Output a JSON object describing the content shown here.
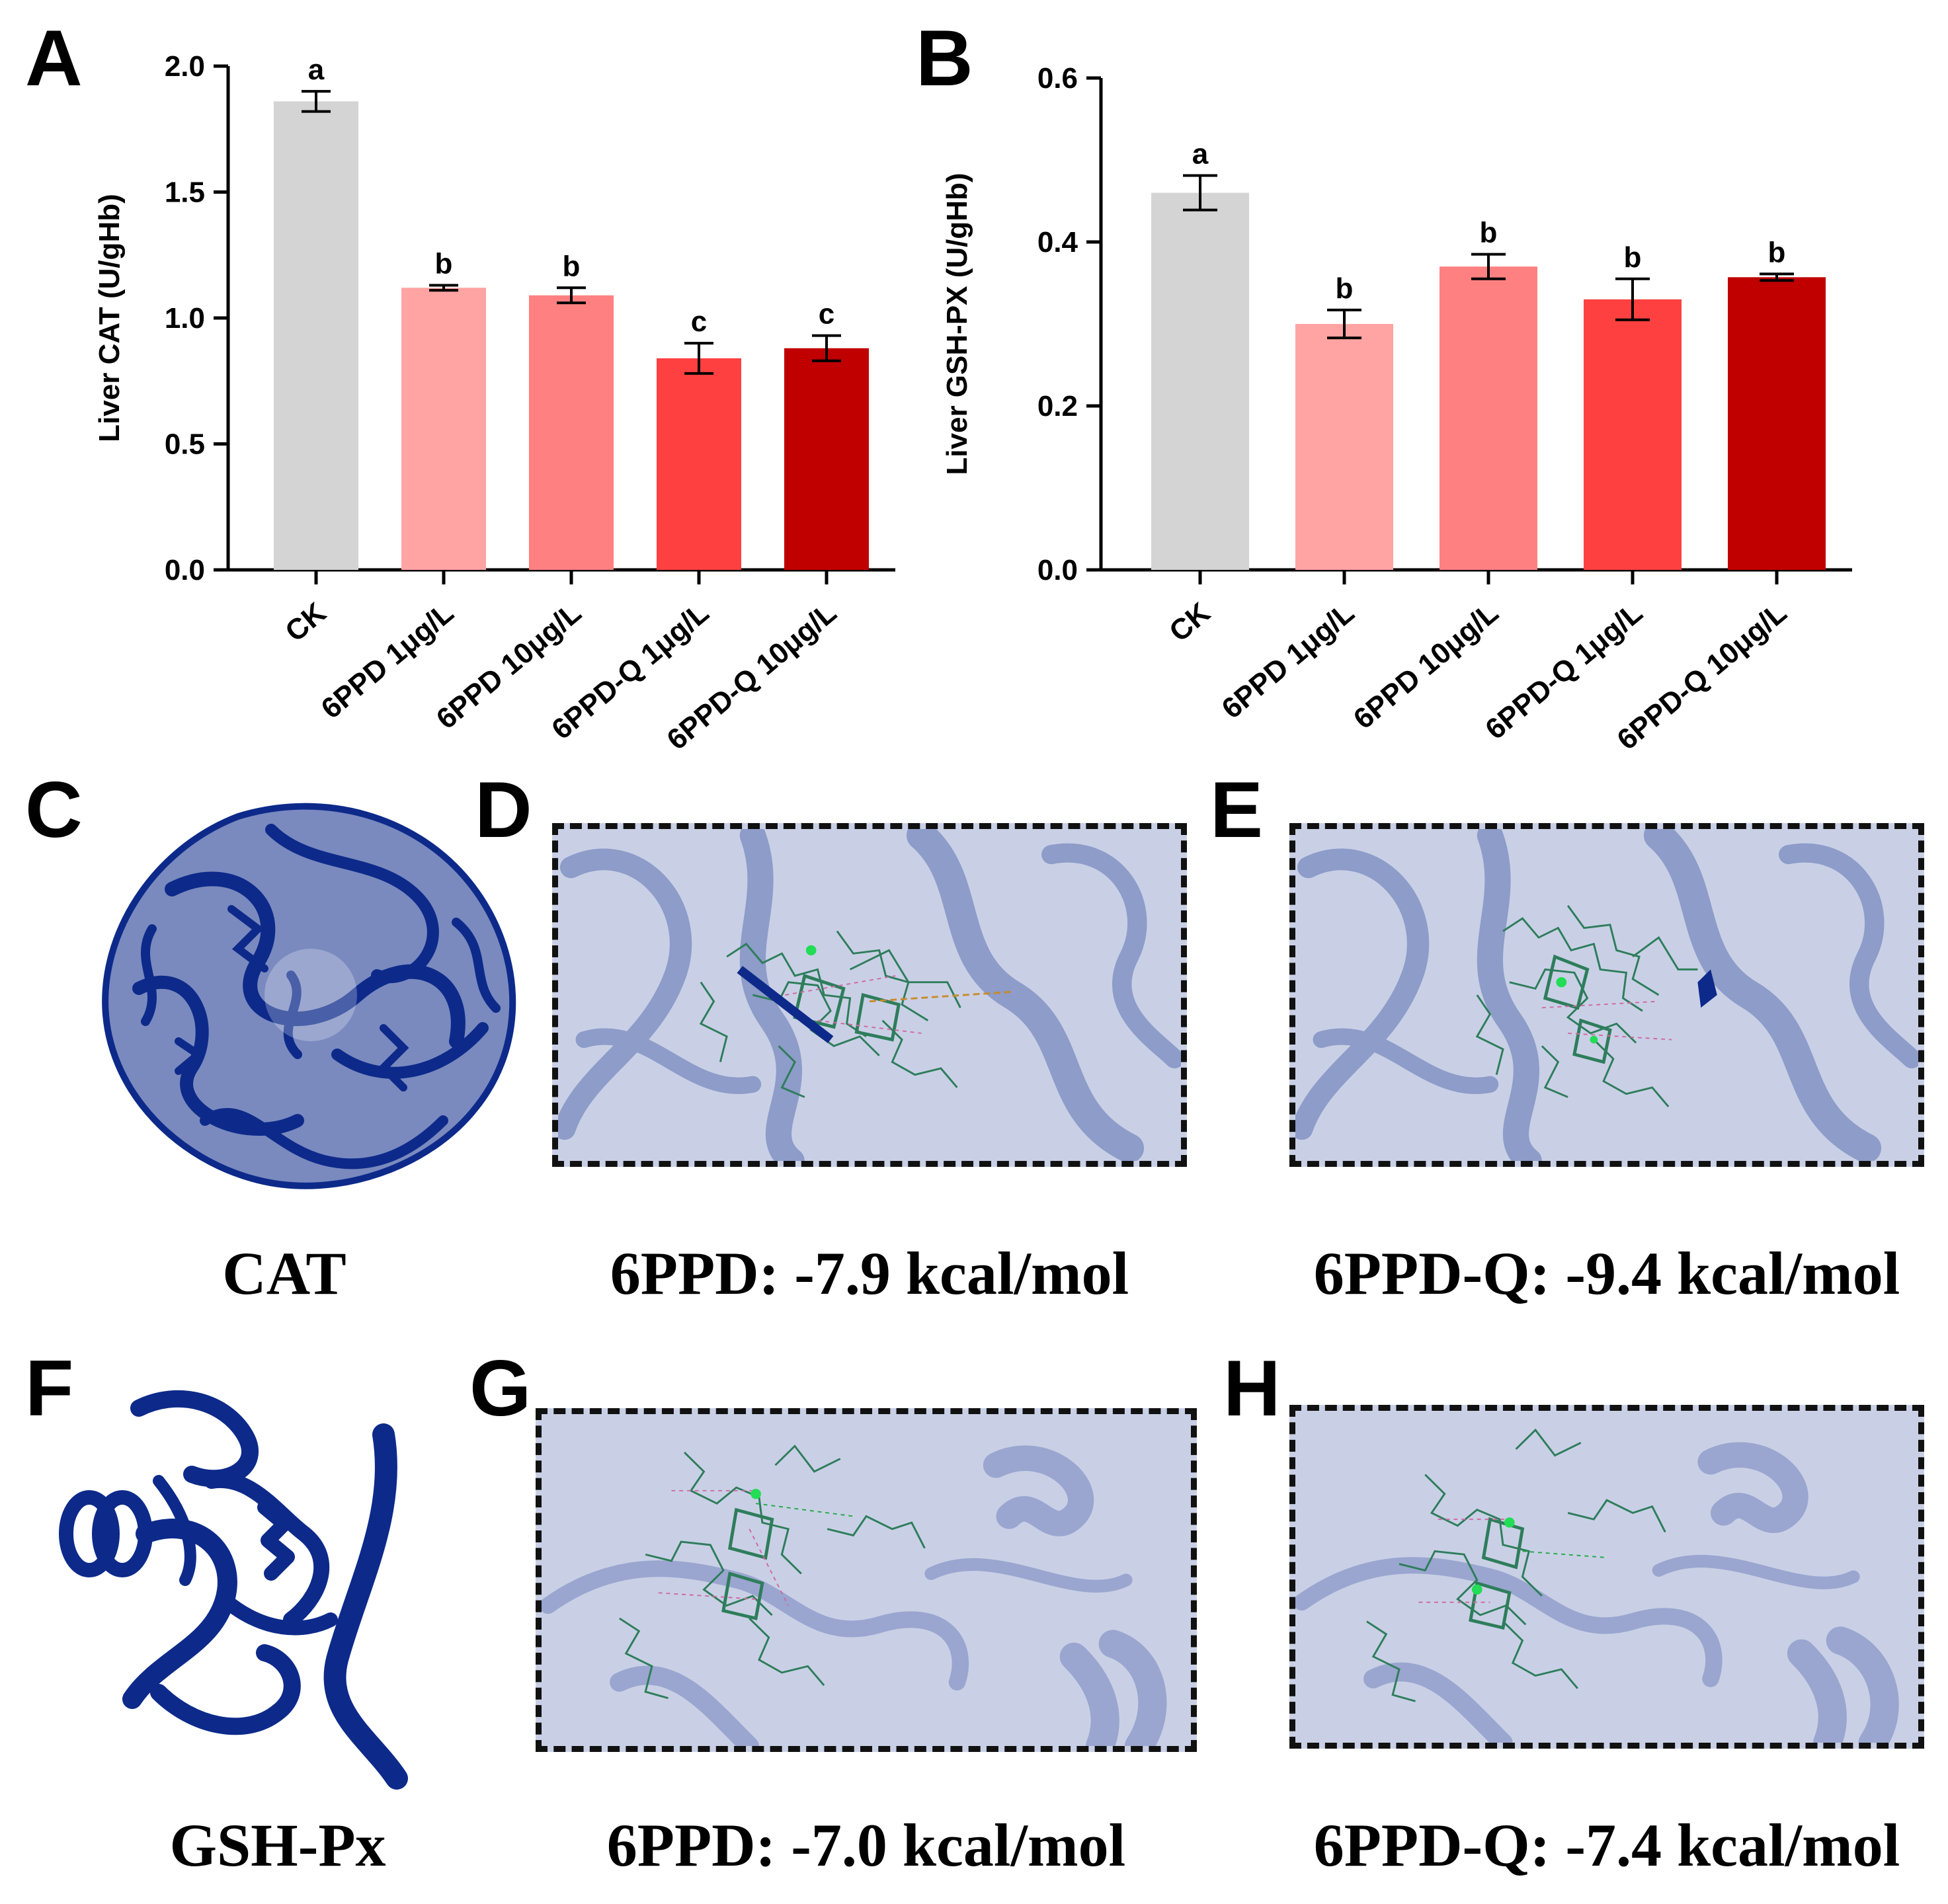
{
  "panels": {
    "A": "A",
    "B": "B",
    "C": "C",
    "D": "D",
    "E": "E",
    "F": "F",
    "G": "G",
    "H": "H"
  },
  "captions": {
    "C": "CAT",
    "D": "6PPD: -7.9 kcal/mol",
    "E": "6PPD-Q: -9.4 kcal/mol",
    "F": "GSH-Px",
    "G": "6PPD: -7.0 kcal/mol",
    "H": "6PPD-Q: -7.4 kcal/mol"
  },
  "colors": {
    "CK": "#d4d4d4",
    "6PPD 1μg/L": "#ffa3a3",
    "6PPD 10μg/L": "#ff8080",
    "6PPD-Q 1μg/L": "#ff4040",
    "6PPD-Q 10μg/L": "#c00000",
    "protein": "#0d2a8a",
    "dock_background": "#c9d0e6",
    "ligand": "#2e7d5b"
  },
  "chart_data": [
    {
      "type": "bar",
      "panel": "A",
      "categories": [
        "CK",
        "6PPD 1μg/L",
        "6PPD 10μg/L",
        "6PPD-Q 1μg/L",
        "6PPD-Q 10μg/L"
      ],
      "values": [
        1.86,
        1.12,
        1.09,
        0.84,
        0.88
      ],
      "errors": [
        0.04,
        0.01,
        0.03,
        0.06,
        0.05
      ],
      "significance": [
        "a",
        "b",
        "b",
        "c",
        "c"
      ],
      "ylabel": "Liver CAT (U/gHb)",
      "ylim": [
        0,
        2.0
      ],
      "yticks": [
        "0.0",
        "0.5",
        "1.0",
        "1.5",
        "2.0"
      ],
      "grid": false
    },
    {
      "type": "bar",
      "panel": "B",
      "categories": [
        "CK",
        "6PPD 1μg/L",
        "6PPD 10μg/L",
        "6PPD-Q 1μg/L",
        "6PPD-Q 10μg/L"
      ],
      "values": [
        0.46,
        0.3,
        0.37,
        0.33,
        0.357
      ],
      "errors": [
        0.021,
        0.017,
        0.015,
        0.025,
        0.004
      ],
      "significance": [
        "a",
        "b",
        "b",
        "b",
        "b"
      ],
      "ylabel": "Liver GSH-PX (U/gHb)",
      "ylim": [
        0,
        0.6
      ],
      "yticks": [
        "0.0",
        "0.2",
        "0.4",
        "0.6"
      ],
      "grid": false
    }
  ]
}
